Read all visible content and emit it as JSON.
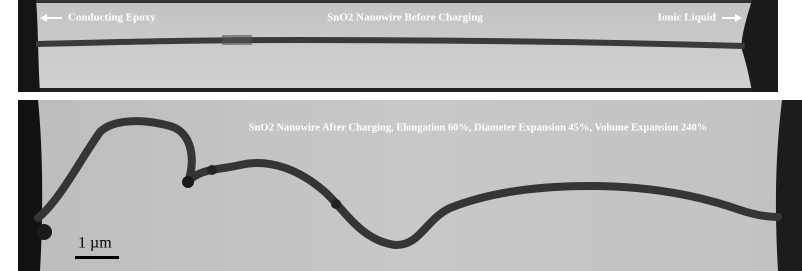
{
  "top_panel": {
    "left_label": "Conducting Epoxy",
    "title": "SnO2 Nanowire Before Charging",
    "right_label": "Ionic Liquid"
  },
  "bottom_panel": {
    "title": "SnO2 Nanowire After Charging, Elongation 60%, Diameter Expansion 45%, Volume Expansion 240%",
    "scale_bar": "1 µm"
  }
}
